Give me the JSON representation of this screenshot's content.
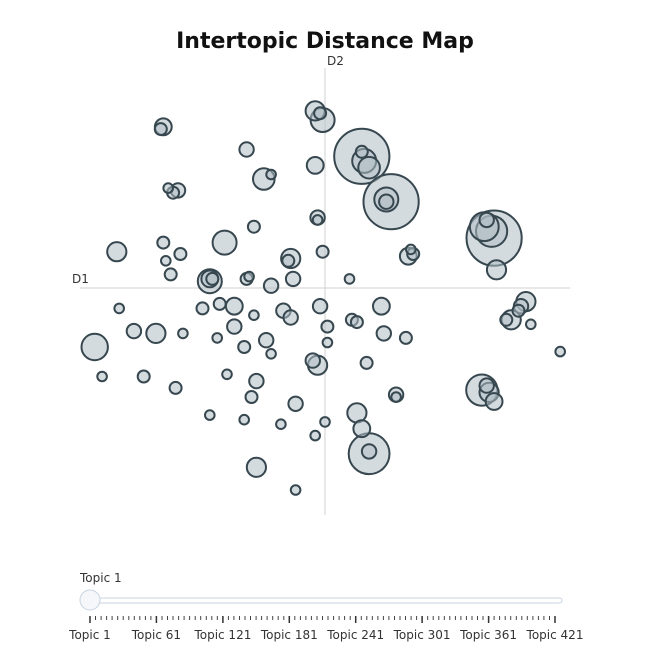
{
  "chart_data": {
    "type": "scatter",
    "title": "Intertopic Distance Map",
    "x_axis_label": "D1",
    "y_axis_label": "D2",
    "xlim": [
      -10,
      10
    ],
    "ylim": [
      -10,
      10
    ],
    "grid": false,
    "points": [
      [
        -6.6,
        7.1,
        0.7
      ],
      [
        -6.7,
        7.0,
        0.5
      ],
      [
        -3.2,
        6.1,
        0.6
      ],
      [
        -2.5,
        4.8,
        0.9
      ],
      [
        -2.2,
        5.0,
        0.4
      ],
      [
        -6.4,
        4.4,
        0.4
      ],
      [
        -6.0,
        4.3,
        0.6
      ],
      [
        -6.2,
        4.2,
        0.5
      ],
      [
        -2.9,
        2.7,
        0.5
      ],
      [
        -0.4,
        5.4,
        0.7
      ],
      [
        -0.4,
        7.8,
        0.8
      ],
      [
        -0.1,
        7.4,
        1.0
      ],
      [
        -0.2,
        7.7,
        0.5
      ],
      [
        1.5,
        5.8,
        2.3
      ],
      [
        1.6,
        5.6,
        1.0
      ],
      [
        1.8,
        5.3,
        0.9
      ],
      [
        1.5,
        6.0,
        0.5
      ],
      [
        2.7,
        3.8,
        2.3
      ],
      [
        2.5,
        3.9,
        1.0
      ],
      [
        2.5,
        3.8,
        0.6
      ],
      [
        -0.3,
        3.1,
        0.6
      ],
      [
        -0.3,
        3.0,
        0.4
      ],
      [
        -8.5,
        1.6,
        0.8
      ],
      [
        -6.6,
        2.0,
        0.5
      ],
      [
        -6.5,
        1.2,
        0.4
      ],
      [
        -6.3,
        0.6,
        0.5
      ],
      [
        -5.9,
        1.5,
        0.5
      ],
      [
        -4.1,
        2.0,
        1.0
      ],
      [
        -4.7,
        0.3,
        1.0
      ],
      [
        -4.7,
        0.4,
        0.7
      ],
      [
        -4.6,
        0.4,
        0.5
      ],
      [
        -3.2,
        0.4,
        0.5
      ],
      [
        -3.1,
        0.5,
        0.4
      ],
      [
        -1.4,
        1.3,
        0.8
      ],
      [
        -1.5,
        1.2,
        0.5
      ],
      [
        -1.3,
        0.4,
        0.6
      ],
      [
        -2.2,
        0.1,
        0.6
      ],
      [
        -0.1,
        1.6,
        0.5
      ],
      [
        1.0,
        0.4,
        0.4
      ],
      [
        3.4,
        1.4,
        0.7
      ],
      [
        3.6,
        1.5,
        0.5
      ],
      [
        3.5,
        1.7,
        0.4
      ],
      [
        6.5,
        2.7,
        1.2
      ],
      [
        6.9,
        2.2,
        2.3
      ],
      [
        6.8,
        2.5,
        1.3
      ],
      [
        6.6,
        3.0,
        0.6
      ],
      [
        7.0,
        0.8,
        0.8
      ],
      [
        8.2,
        -0.6,
        0.8
      ],
      [
        8.0,
        -0.8,
        0.6
      ],
      [
        7.9,
        -1.0,
        0.5
      ],
      [
        7.6,
        -1.4,
        0.8
      ],
      [
        7.4,
        -1.4,
        0.5
      ],
      [
        8.4,
        -1.6,
        0.4
      ],
      [
        -8.4,
        -0.9,
        0.4
      ],
      [
        -7.8,
        -1.9,
        0.6
      ],
      [
        -6.9,
        -2.0,
        0.8
      ],
      [
        -5.8,
        -2.0,
        0.4
      ],
      [
        -5.0,
        -0.9,
        0.5
      ],
      [
        -4.3,
        -0.7,
        0.5
      ],
      [
        -3.7,
        -0.8,
        0.7
      ],
      [
        -4.4,
        -2.2,
        0.4
      ],
      [
        -3.7,
        -1.7,
        0.6
      ],
      [
        -3.3,
        -2.6,
        0.5
      ],
      [
        -2.9,
        -1.2,
        0.4
      ],
      [
        -2.4,
        -2.3,
        0.6
      ],
      [
        -2.2,
        -2.9,
        0.4
      ],
      [
        -1.7,
        -1.0,
        0.6
      ],
      [
        -1.4,
        -1.3,
        0.6
      ],
      [
        -0.2,
        -0.8,
        0.6
      ],
      [
        0.1,
        -1.7,
        0.5
      ],
      [
        0.1,
        -2.4,
        0.4
      ],
      [
        -0.5,
        -3.2,
        0.6
      ],
      [
        -0.3,
        -3.4,
        0.8
      ],
      [
        1.1,
        -1.4,
        0.5
      ],
      [
        1.3,
        -1.5,
        0.5
      ],
      [
        1.7,
        -3.3,
        0.5
      ],
      [
        2.3,
        -0.8,
        0.7
      ],
      [
        2.4,
        -2.0,
        0.6
      ],
      [
        3.3,
        -2.2,
        0.5
      ],
      [
        9.6,
        -2.8,
        0.4
      ],
      [
        -9.4,
        -2.6,
        1.1
      ],
      [
        -9.1,
        -3.9,
        0.4
      ],
      [
        -7.4,
        -3.9,
        0.5
      ],
      [
        -6.1,
        -4.4,
        0.5
      ],
      [
        -4.0,
        -3.8,
        0.4
      ],
      [
        -2.8,
        -4.1,
        0.6
      ],
      [
        -3.0,
        -4.8,
        0.5
      ],
      [
        -4.7,
        -5.6,
        0.4
      ],
      [
        -3.3,
        -5.8,
        0.4
      ],
      [
        -1.8,
        -6.0,
        0.4
      ],
      [
        -1.2,
        -5.1,
        0.6
      ],
      [
        -0.4,
        -6.5,
        0.4
      ],
      [
        0.0,
        -5.9,
        0.4
      ],
      [
        1.3,
        -5.5,
        0.8
      ],
      [
        1.5,
        -6.2,
        0.7
      ],
      [
        1.8,
        -7.3,
        1.7
      ],
      [
        1.8,
        -7.2,
        0.6
      ],
      [
        -2.8,
        -7.9,
        0.8
      ],
      [
        -1.2,
        -8.9,
        0.4
      ],
      [
        6.4,
        -4.5,
        1.3
      ],
      [
        6.7,
        -4.6,
        0.8
      ],
      [
        6.6,
        -4.3,
        0.6
      ],
      [
        6.9,
        -5.0,
        0.7
      ],
      [
        2.9,
        -4.7,
        0.6
      ],
      [
        2.9,
        -4.8,
        0.4
      ]
    ]
  },
  "slider": {
    "current_label": "Topic 1",
    "value": 1,
    "min": 1,
    "max": 421,
    "tick_labels": [
      "Topic 1",
      "Topic 61",
      "Topic 121",
      "Topic 181",
      "Topic 241",
      "Topic 301",
      "Topic 361",
      "Topic 421"
    ]
  },
  "colors": {
    "bubble_fill": "#b0bec5",
    "bubble_stroke": "#37474f",
    "axis_line": "#d0d0d0",
    "slider_rail": "#c8d3df",
    "slider_handle_stroke": "#c8d3df"
  }
}
